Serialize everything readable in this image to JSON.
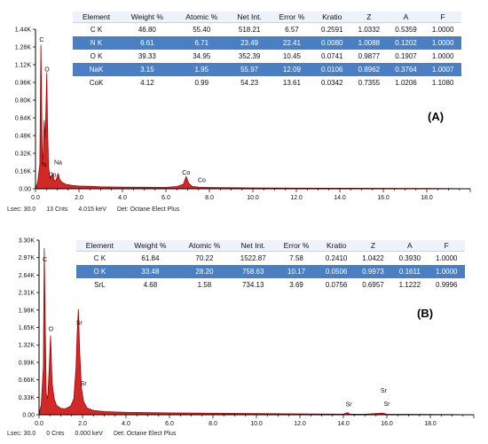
{
  "chart_data": [
    {
      "type": "line",
      "panel": "(A)",
      "xlim": [
        0,
        20
      ],
      "ylim": [
        0,
        1440
      ],
      "x_ticks": [
        "0.0",
        "2.0",
        "4.0",
        "6.0",
        "8.0",
        "10.0",
        "12.0",
        "14.0",
        "16.0",
        "18.0"
      ],
      "y_ticks": [
        "0.00",
        "0.16K",
        "0.32K",
        "0.48K",
        "0.64K",
        "0.80K",
        "0.96K",
        "1.12K",
        "1.28K",
        "1.44K"
      ],
      "spectrum": {
        "x": [
          0.0,
          0.1,
          0.2,
          0.25,
          0.28,
          0.32,
          0.36,
          0.4,
          0.45,
          0.5,
          0.52,
          0.55,
          0.6,
          0.65,
          0.7,
          0.78,
          0.85,
          0.93,
          1.0,
          1.04,
          1.1,
          1.2,
          1.4,
          1.7,
          2.0,
          2.5,
          3.0,
          4.0,
          5.0,
          6.0,
          6.5,
          6.8,
          6.93,
          7.05,
          7.2,
          7.5,
          8.0,
          9.0,
          10.0,
          12.0,
          14.0,
          16.0,
          18.0,
          20.0
        ],
        "y": [
          0,
          60,
          220,
          1300,
          800,
          220,
          340,
          620,
          450,
          900,
          1050,
          600,
          200,
          120,
          90,
          140,
          80,
          70,
          110,
          140,
          90,
          60,
          40,
          30,
          25,
          22,
          18,
          15,
          14,
          13,
          20,
          40,
          110,
          50,
          22,
          15,
          12,
          10,
          8,
          6,
          5,
          4,
          3,
          0
        ]
      },
      "peak_labels": [
        {
          "text": "C",
          "x": 0.28,
          "y": 1330
        },
        {
          "text": "O",
          "x": 0.53,
          "y": 1060
        },
        {
          "text": "N",
          "x": 0.39,
          "y": 200
        },
        {
          "text": "Na",
          "x": 1.04,
          "y": 220
        },
        {
          "text": "Co",
          "x": 0.78,
          "y": 110
        },
        {
          "text": "Co",
          "x": 6.93,
          "y": 130
        },
        {
          "text": "Co",
          "x": 7.65,
          "y": 60
        }
      ],
      "table": {
        "headers": [
          "Element",
          "Weight %",
          "Atomic %",
          "Net Int.",
          "Error %",
          "Kratio",
          "Z",
          "A",
          "F"
        ],
        "rows": [
          [
            "C K",
            "46.80",
            "55.40",
            "518.21",
            "6.57",
            "0.2591",
            "1.0332",
            "0.5359",
            "1.0000"
          ],
          [
            "N K",
            "6.61",
            "6.71",
            "23.49",
            "22.41",
            "0.0080",
            "1.0088",
            "0.1202",
            "1.0000"
          ],
          [
            "O K",
            "39.33",
            "34.95",
            "352.39",
            "10.45",
            "0.0741",
            "0.9877",
            "0.1907",
            "1.0000"
          ],
          [
            "NaK",
            "3.15",
            "1.95",
            "55.97",
            "12.09",
            "0.0106",
            "0.8962",
            "0.3764",
            "1.0007"
          ],
          [
            "CoK",
            "4.12",
            "0.99",
            "54.23",
            "13.61",
            "0.0342",
            "0.7355",
            "1.0206",
            "1.1080"
          ]
        ]
      },
      "status": {
        "lsec": "Lsec: 30.0",
        "cnts": "13 Cnts",
        "kev": "4.015 keV",
        "det": "Det: Octane Elect Plus"
      }
    },
    {
      "type": "line",
      "panel": "(B)",
      "xlim": [
        0,
        20
      ],
      "ylim": [
        0,
        3300
      ],
      "x_ticks": [
        "0.0",
        "2.0",
        "4.0",
        "6.0",
        "8.0",
        "10.0",
        "12.0",
        "14.0",
        "16.0",
        "18.0"
      ],
      "y_ticks": [
        "0.00",
        "0.33K",
        "0.66K",
        "0.99K",
        "1.32K",
        "1.65K",
        "1.98K",
        "2.31K",
        "2.64K",
        "2.97K",
        "3.30K"
      ],
      "spectrum": {
        "x": [
          0.0,
          0.1,
          0.2,
          0.24,
          0.28,
          0.33,
          0.4,
          0.47,
          0.53,
          0.6,
          0.7,
          0.8,
          1.0,
          1.2,
          1.45,
          1.6,
          1.7,
          1.75,
          1.81,
          1.87,
          1.95,
          2.05,
          2.2,
          2.5,
          3.0,
          4.0,
          6.0,
          8.0,
          10.0,
          12.0,
          14.0,
          14.2,
          14.3,
          15.0,
          15.8,
          16.0,
          18.0,
          20.0
        ],
        "y": [
          0,
          200,
          900,
          3150,
          1800,
          400,
          300,
          900,
          1500,
          600,
          300,
          180,
          120,
          110,
          160,
          300,
          900,
          1500,
          2000,
          1200,
          500,
          250,
          130,
          80,
          60,
          45,
          35,
          28,
          22,
          16,
          12,
          40,
          12,
          10,
          30,
          10,
          6,
          0
        ]
      },
      "peak_labels": [
        {
          "text": "C",
          "x": 0.27,
          "y": 2900
        },
        {
          "text": "O",
          "x": 0.55,
          "y": 1580
        },
        {
          "text": "Sr",
          "x": 1.85,
          "y": 1700
        },
        {
          "text": "Sr",
          "x": 2.05,
          "y": 550
        },
        {
          "text": "Sr",
          "x": 14.25,
          "y": 160
        },
        {
          "text": "Sr",
          "x": 15.85,
          "y": 420
        },
        {
          "text": "Sr",
          "x": 16.0,
          "y": 170
        }
      ],
      "table": {
        "headers": [
          "Element",
          "Weight %",
          "Atomic %",
          "Net Int.",
          "Error %",
          "Kratio",
          "Z",
          "A",
          "F"
        ],
        "rows": [
          [
            "C K",
            "61.84",
            "70.22",
            "1522.87",
            "7.58",
            "0.2410",
            "1.0422",
            "0.3930",
            "1.0000"
          ],
          [
            "O K",
            "33.48",
            "28.20",
            "758.63",
            "10.17",
            "0.0506",
            "0.9973",
            "0.1611",
            "1.0000"
          ],
          [
            "SrL",
            "4.68",
            "1.58",
            "734.13",
            "3.69",
            "0.0756",
            "0.6957",
            "1.1222",
            "0.9996"
          ]
        ]
      },
      "status": {
        "lsec": "Lsec: 30.0",
        "cnts": "0 Cnts",
        "kev": "0.000 keV",
        "det": "Det: Octane Elect Plus"
      }
    }
  ],
  "colors": {
    "spectrum_fill": "#cc1111",
    "spectrum_stroke": "#a80000",
    "axis": "#000000",
    "table_highlight": "#4a7fc4"
  }
}
